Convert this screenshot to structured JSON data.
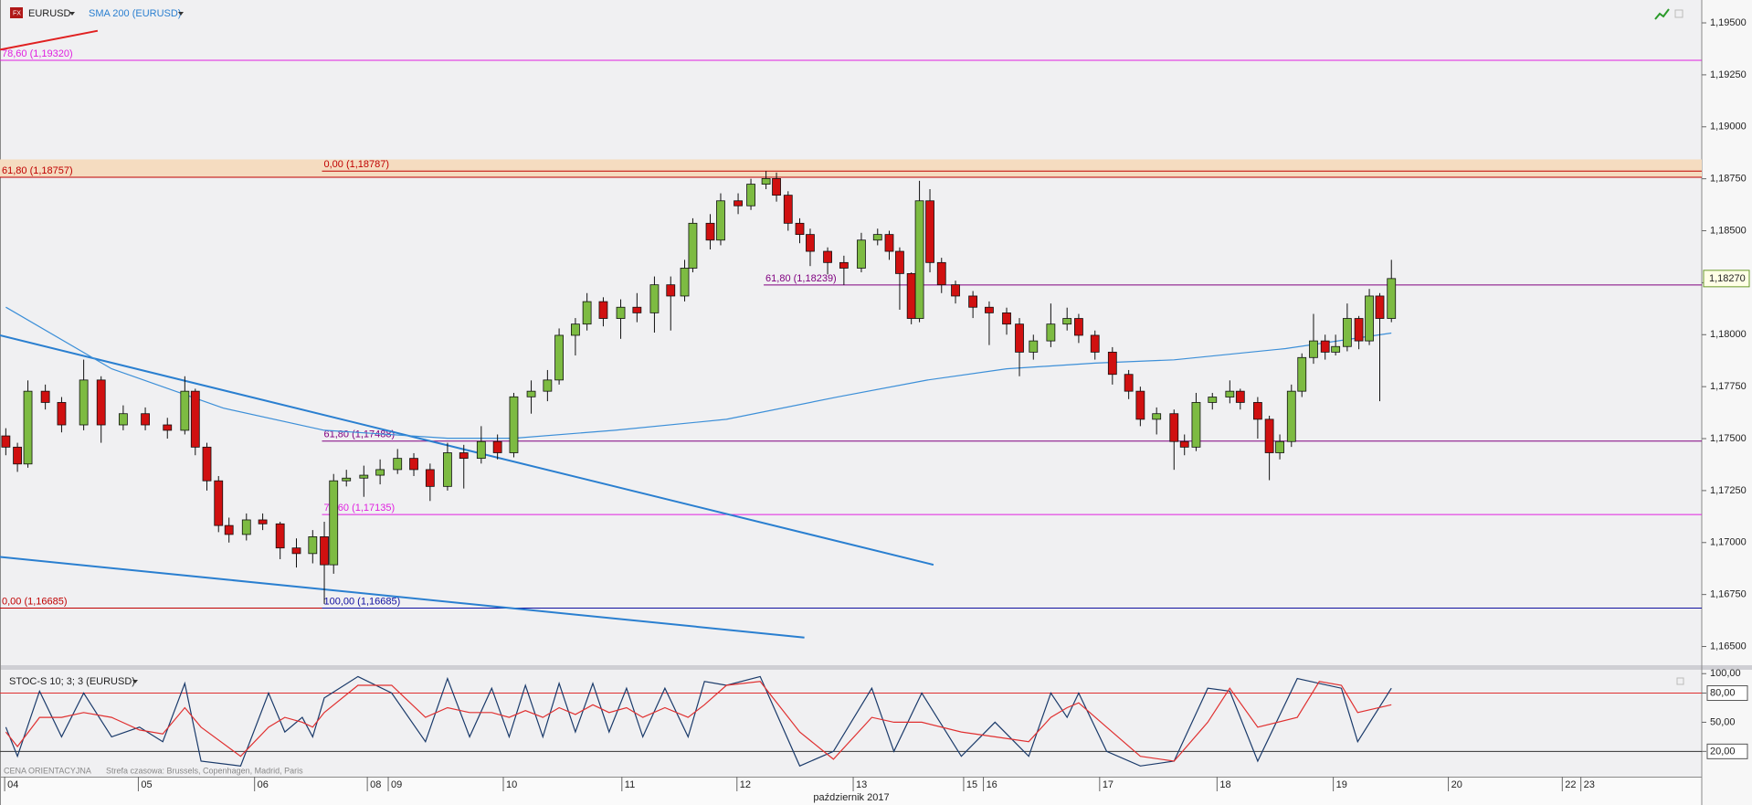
{
  "chart_data": [
    {
      "type": "candlestick",
      "symbol": "EURUSD",
      "xlim": [
        -0.04,
        14.6
      ],
      "ylim": [
        1.1641,
        1.1961
      ],
      "yticks": [
        {
          "value": 1.165,
          "label": "1,16500"
        },
        {
          "value": 1.1675,
          "label": "1,16750"
        },
        {
          "value": 1.17,
          "label": "1,17000"
        },
        {
          "value": 1.1725,
          "label": "1,17250"
        },
        {
          "value": 1.175,
          "label": "1,17500"
        },
        {
          "value": 1.1775,
          "label": "1,17750"
        },
        {
          "value": 1.18,
          "label": "1,18000"
        },
        {
          "value": 1.1825,
          "label": "1,18250"
        },
        {
          "value": 1.185,
          "label": "1,18500"
        },
        {
          "value": 1.1875,
          "label": "1,18750"
        },
        {
          "value": 1.19,
          "label": "1,19000"
        },
        {
          "value": 1.1925,
          "label": "1,19250"
        },
        {
          "value": 1.195,
          "label": "1,19500"
        }
      ],
      "up_color": "#7dbb42",
      "down_color": "#d01010",
      "x": [
        0.01,
        0.11,
        0.2,
        0.35,
        0.49,
        0.68,
        0.83,
        1.02,
        1.21,
        1.4,
        1.55,
        1.64,
        1.74,
        1.84,
        1.93,
        2.08,
        2.22,
        2.37,
        2.51,
        2.65,
        2.75,
        2.83,
        2.94,
        3.09,
        3.23,
        3.38,
        3.52,
        3.66,
        3.81,
        3.95,
        4.1,
        4.24,
        4.38,
        4.53,
        4.67,
        4.77,
        4.91,
        5.01,
        5.15,
        5.3,
        5.44,
        5.59,
        5.73,
        5.85,
        5.92,
        6.07,
        6.16,
        6.31,
        6.42,
        6.55,
        6.64,
        6.74,
        6.84,
        6.93,
        7.08,
        7.22,
        7.37,
        7.51,
        7.61,
        7.7,
        7.8,
        7.87,
        7.96,
        8.06,
        8.18,
        8.33,
        8.47,
        8.62,
        8.73,
        8.85,
        9.0,
        9.14,
        9.24,
        9.38,
        9.53,
        9.67,
        9.77,
        9.91,
        10.06,
        10.15,
        10.25,
        10.39,
        10.54,
        10.63,
        10.78,
        10.88,
        10.97,
        11.07,
        11.16,
        11.26,
        11.36,
        11.45,
        11.55,
        11.65,
        11.74,
        11.83,
        11.93
      ],
      "open": [
        1.17513,
        1.17459,
        1.17378,
        1.17728,
        1.17674,
        1.17566,
        1.17782,
        1.17566,
        1.1762,
        1.17566,
        1.1754,
        1.17728,
        1.17459,
        1.17297,
        1.17082,
        1.17039,
        1.17109,
        1.1709,
        1.16974,
        1.16947,
        1.17028,
        1.16893,
        1.17297,
        1.1731,
        1.17324,
        1.17351,
        1.17405,
        1.17351,
        1.1727,
        1.17432,
        1.17405,
        1.17486,
        1.17432,
        1.17701,
        1.17728,
        1.17782,
        1.17997,
        1.18051,
        1.18159,
        1.18078,
        1.18132,
        1.18105,
        1.1824,
        1.18186,
        1.1832,
        1.18536,
        1.18455,
        1.18644,
        1.1862,
        1.18724,
        1.18751,
        1.18671,
        1.18536,
        1.18482,
        1.18401,
        1.18347,
        1.1832,
        1.18455,
        1.18482,
        1.18401,
        1.18294,
        1.18078,
        1.18644,
        1.18347,
        1.1824,
        1.18186,
        1.18132,
        1.18105,
        1.18051,
        1.17916,
        1.1797,
        1.18051,
        1.18078,
        1.17997,
        1.17916,
        1.17809,
        1.17728,
        1.17593,
        1.1762,
        1.17486,
        1.17459,
        1.17674,
        1.177,
        1.17728,
        1.17674,
        1.17593,
        1.17432,
        1.17486,
        1.17728,
        1.1789,
        1.1797,
        1.17916,
        1.17943,
        1.18078,
        1.1797,
        1.18186,
        1.18078
      ],
      "high": [
        1.1755,
        1.1748,
        1.1778,
        1.1776,
        1.177,
        1.1788,
        1.178,
        1.1766,
        1.1765,
        1.176,
        1.178,
        1.1774,
        1.1748,
        1.1732,
        1.1712,
        1.1714,
        1.1714,
        1.171,
        1.1702,
        1.1706,
        1.171,
        1.1733,
        1.1735,
        1.1737,
        1.174,
        1.1745,
        1.1743,
        1.1738,
        1.1748,
        1.1747,
        1.1756,
        1.1752,
        1.1772,
        1.1778,
        1.1783,
        1.1803,
        1.1808,
        1.182,
        1.1818,
        1.1817,
        1.182,
        1.1828,
        1.1828,
        1.1836,
        1.1856,
        1.1858,
        1.1868,
        1.1868,
        1.1875,
        1.18787,
        1.1878,
        1.1869,
        1.1856,
        1.1851,
        1.1842,
        1.1838,
        1.1849,
        1.1851,
        1.185,
        1.1842,
        1.183,
        1.1874,
        1.187,
        1.1837,
        1.1826,
        1.1821,
        1.1816,
        1.1813,
        1.1808,
        1.18,
        1.1815,
        1.1813,
        1.181,
        1.1802,
        1.1794,
        1.1783,
        1.1775,
        1.1765,
        1.1764,
        1.1752,
        1.1772,
        1.1772,
        1.1778,
        1.1774,
        1.177,
        1.1761,
        1.1752,
        1.1776,
        1.1791,
        1.181,
        1.18,
        1.18,
        1.1815,
        1.1809,
        1.1822,
        1.182,
        1.1836
      ],
      "low": [
        1.1742,
        1.1734,
        1.1736,
        1.1764,
        1.1753,
        1.1754,
        1.1748,
        1.1754,
        1.1754,
        1.175,
        1.1752,
        1.1742,
        1.1725,
        1.1705,
        1.17,
        1.1701,
        1.1706,
        1.1692,
        1.1688,
        1.169,
        1.16705,
        1.1685,
        1.1727,
        1.1722,
        1.1728,
        1.1733,
        1.1732,
        1.172,
        1.1725,
        1.1726,
        1.1738,
        1.174,
        1.1741,
        1.1762,
        1.1768,
        1.1776,
        1.179,
        1.1802,
        1.1804,
        1.1798,
        1.1806,
        1.1801,
        1.1802,
        1.1816,
        1.183,
        1.1841,
        1.1843,
        1.1858,
        1.186,
        1.187,
        1.1864,
        1.185,
        1.1844,
        1.1833,
        1.1829,
        1.18239,
        1.183,
        1.1843,
        1.1836,
        1.1812,
        1.1805,
        1.1806,
        1.183,
        1.182,
        1.1815,
        1.1808,
        1.1795,
        1.18,
        1.178,
        1.1788,
        1.1794,
        1.1802,
        1.1796,
        1.1788,
        1.1776,
        1.1769,
        1.1756,
        1.1752,
        1.1735,
        1.1742,
        1.1744,
        1.1764,
        1.1767,
        1.1764,
        1.175,
        1.173,
        1.174,
        1.1746,
        1.177,
        1.1786,
        1.1788,
        1.179,
        1.1792,
        1.1793,
        1.1795,
        1.1768,
        1.1806
      ],
      "close": [
        1.17459,
        1.17378,
        1.17728,
        1.17674,
        1.17566,
        1.17782,
        1.17566,
        1.1762,
        1.17566,
        1.1754,
        1.17728,
        1.17459,
        1.17297,
        1.17082,
        1.17039,
        1.17109,
        1.1709,
        1.16974,
        1.16947,
        1.17028,
        1.16893,
        1.17297,
        1.1731,
        1.17324,
        1.17351,
        1.17405,
        1.17351,
        1.1727,
        1.17432,
        1.17405,
        1.17486,
        1.17432,
        1.17701,
        1.17728,
        1.17782,
        1.17997,
        1.18051,
        1.18159,
        1.18078,
        1.18132,
        1.18105,
        1.1824,
        1.18186,
        1.1832,
        1.18536,
        1.18455,
        1.18644,
        1.1862,
        1.18724,
        1.18751,
        1.18671,
        1.18536,
        1.18482,
        1.18401,
        1.18347,
        1.1832,
        1.18455,
        1.18482,
        1.18401,
        1.18294,
        1.18078,
        1.18644,
        1.18347,
        1.1824,
        1.18186,
        1.18132,
        1.18105,
        1.18051,
        1.17916,
        1.1797,
        1.18051,
        1.18078,
        1.17997,
        1.17916,
        1.17809,
        1.17728,
        1.17593,
        1.1762,
        1.17486,
        1.17459,
        1.17674,
        1.177,
        1.17728,
        1.17674,
        1.17593,
        1.17432,
        1.17486,
        1.17728,
        1.1789,
        1.1797,
        1.17916,
        1.17943,
        1.18078,
        1.1797,
        1.18186,
        1.18078,
        1.1827
      ],
      "series": [
        {
          "name": "SMA 200 (EURUSD)",
          "color": "#3c8fd8",
          "x": [
            0.01,
            0.92,
            1.88,
            2.75,
            3.81,
            4.38,
            5.25,
            6.21,
            7.17,
            7.94,
            8.62,
            9.38,
            10.06,
            11.02,
            11.93
          ],
          "values": [
            1.18132,
            1.17836,
            1.17647,
            1.1754,
            1.17502,
            1.17502,
            1.1754,
            1.17593,
            1.17701,
            1.17782,
            1.17836,
            1.17863,
            1.17879,
            1.17933,
            1.18008
          ]
        }
      ],
      "trend_lines": [
        {
          "color": "#2a7fd0",
          "x": [
            -0.04,
            7.99
          ],
          "y": [
            1.17997,
            1.16893
          ]
        },
        {
          "color": "#2a7fd0",
          "x": [
            -0.04,
            6.88
          ],
          "y": [
            1.16931,
            1.16543
          ]
        },
        {
          "color": "#e02020",
          "x": [
            -0.04,
            0.8
          ],
          "y": [
            1.19371,
            1.19462
          ]
        }
      ],
      "zone": [
        1.18757,
        1.18843
      ],
      "zone_color": "#f5dcc0",
      "levels": [
        {
          "label": "78,60 (1,19320)",
          "value": 1.1932,
          "color": "#e020e0",
          "x0": -0.04
        },
        {
          "label": "61,80 (1,18757)",
          "value": 1.18757,
          "color": "#c00000",
          "x0": -0.04
        },
        {
          "label": "0,00 (1,18787)",
          "value": 1.18787,
          "color": "#c00000",
          "x0": 2.73
        },
        {
          "label": "61,80 (1,18239)",
          "value": 1.18239,
          "color": "#800080",
          "x0": 6.53
        },
        {
          "label": "61,80 (1,17488)",
          "value": 1.17488,
          "color": "#800080",
          "x0": 2.73
        },
        {
          "label": "78,60 (1,17135)",
          "value": 1.17135,
          "color": "#e020e0",
          "x0": 2.73
        },
        {
          "label": "0,00 (1,16685)",
          "value": 1.16685,
          "color": "#c00000",
          "x0": -0.04
        },
        {
          "label": "100,00 (1,16685)",
          "value": 1.16685,
          "color": "#1010a0",
          "x0": 2.73
        }
      ],
      "last": {
        "value": 1.1827,
        "label": "1,18270"
      }
    },
    {
      "type": "line",
      "title": "STOC-S 10; 3; 3 (EURUSD)",
      "xlim": [
        -0.04,
        14.6
      ],
      "ylim": [
        -6,
        104
      ],
      "xticks": [
        {
          "value": 0,
          "label": "04"
        },
        {
          "value": 1.15,
          "label": "05"
        },
        {
          "value": 2.15,
          "label": "06"
        },
        {
          "value": 3.12,
          "label": "08"
        },
        {
          "value": 3.3,
          "label": "09"
        },
        {
          "value": 4.29,
          "label": "10"
        },
        {
          "value": 5.31,
          "label": "11"
        },
        {
          "value": 6.3,
          "label": "12"
        },
        {
          "value": 7.3,
          "label": "13"
        },
        {
          "value": 8.25,
          "label": "15"
        },
        {
          "value": 8.42,
          "label": "16"
        },
        {
          "value": 9.42,
          "label": "17"
        },
        {
          "value": 10.43,
          "label": "18"
        },
        {
          "value": 11.43,
          "label": "19"
        },
        {
          "value": 12.42,
          "label": "20"
        },
        {
          "value": 13.4,
          "label": "22"
        },
        {
          "value": 13.56,
          "label": "23"
        }
      ],
      "x_label": "październik 2017",
      "yticks": [
        {
          "value": 100,
          "label": "100,00"
        },
        {
          "value": 80,
          "label": "80,00",
          "boxed": true
        },
        {
          "value": 50,
          "label": "50,00"
        },
        {
          "value": 20,
          "label": "20,00",
          "boxed": true
        }
      ],
      "levels": [
        {
          "value": 80,
          "color": "#e03030"
        },
        {
          "value": 20,
          "color": "#333333"
        }
      ],
      "notes": [
        "CENA ORIENTACYJNA",
        "Strefa czasowa: Brussels, Copenhagen, Madrid, Paris"
      ],
      "x": [
        0.01,
        0.11,
        0.3,
        0.49,
        0.68,
        0.92,
        1.16,
        1.36,
        1.55,
        1.69,
        2.03,
        2.27,
        2.41,
        2.56,
        2.65,
        2.75,
        3.04,
        3.33,
        3.62,
        3.81,
        4.0,
        4.19,
        4.34,
        4.48,
        4.63,
        4.77,
        4.91,
        5.06,
        5.2,
        5.35,
        5.49,
        5.68,
        5.88,
        6.02,
        6.21,
        6.5,
        6.84,
        7.13,
        7.46,
        7.65,
        7.89,
        8.23,
        8.52,
        8.81,
        9.0,
        9.14,
        9.24,
        9.48,
        9.77,
        10.06,
        10.35,
        10.54,
        10.78,
        11.12,
        11.31,
        11.5,
        11.64,
        11.93
      ],
      "series": [
        {
          "color": "#1a3a6a",
          "values": [
            45,
            15,
            82,
            35,
            80,
            35,
            45,
            30,
            90,
            10,
            5,
            80,
            40,
            55,
            35,
            75,
            97,
            80,
            30,
            95,
            35,
            85,
            35,
            88,
            35,
            90,
            40,
            90,
            40,
            85,
            35,
            85,
            35,
            92,
            88,
            97,
            5,
            20,
            85,
            20,
            80,
            15,
            50,
            15,
            80,
            55,
            80,
            20,
            5,
            10,
            85,
            82,
            10,
            95,
            90,
            85,
            30,
            85
          ]
        },
        {
          "color": "#e03030",
          "values": [
            40,
            25,
            55,
            55,
            60,
            55,
            42,
            38,
            65,
            45,
            15,
            45,
            55,
            50,
            45,
            60,
            88,
            88,
            55,
            65,
            60,
            60,
            55,
            62,
            55,
            65,
            58,
            68,
            60,
            65,
            55,
            65,
            55,
            68,
            88,
            92,
            40,
            12,
            55,
            50,
            50,
            40,
            35,
            30,
            55,
            65,
            70,
            45,
            15,
            10,
            50,
            85,
            45,
            55,
            92,
            88,
            60,
            68
          ]
        }
      ]
    }
  ]
}
